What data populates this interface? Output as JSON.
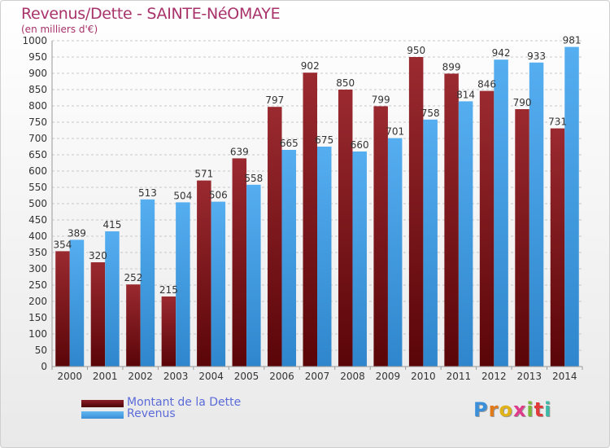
{
  "header": {
    "title": "Revenus/Dette - SAINTE-NéOMAYE",
    "subtitle": "(en milliers d'€)"
  },
  "legend": {
    "items": [
      {
        "label": "Montant de la Dette",
        "color": "#6b0c13"
      },
      {
        "label": "Revenus",
        "color": "#4aa3e8"
      }
    ]
  },
  "logo": {
    "text": "Proxiti"
  },
  "chart_data": {
    "type": "bar",
    "categories": [
      "2000",
      "2001",
      "2002",
      "2003",
      "2004",
      "2005",
      "2006",
      "2007",
      "2008",
      "2009",
      "2010",
      "2011",
      "2012",
      "2013",
      "2014"
    ],
    "series": [
      {
        "name": "Montant de la Dette",
        "color": "#6b0c13",
        "values": [
          354,
          320,
          252,
          215,
          571,
          639,
          797,
          902,
          850,
          799,
          950,
          899,
          846,
          790,
          731
        ]
      },
      {
        "name": "Revenus",
        "color": "#4aa3e8",
        "values": [
          389,
          415,
          513,
          504,
          506,
          558,
          665,
          675,
          660,
          701,
          758,
          814,
          942,
          933,
          981
        ]
      }
    ],
    "ylim": [
      0,
      1000
    ],
    "yticks": [
      0,
      50,
      100,
      150,
      200,
      250,
      300,
      350,
      400,
      450,
      500,
      550,
      600,
      650,
      700,
      750,
      800,
      850,
      900,
      950,
      1000
    ],
    "grid": true,
    "legend_position": "bottom-left",
    "xlabel": "",
    "ylabel": ""
  }
}
